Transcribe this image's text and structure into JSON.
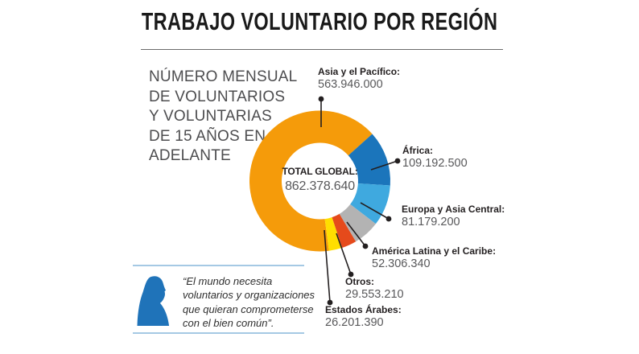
{
  "page": {
    "title": "TRABAJO VOLUNTARIO POR REGIÓN"
  },
  "subtitle": {
    "lines": [
      "NÚMERO MENSUAL",
      "DE VOLUNTARIOS",
      "Y VOLUNTARIAS",
      "DE 15 AÑOS EN",
      "ADELANTE"
    ]
  },
  "chart_data": {
    "type": "pie",
    "variant": "donut",
    "title": "TRABAJO VOLUNTARIO POR REGIÓN",
    "center": {
      "label": "TOTAL GLOBAL:",
      "value": "862.378.640",
      "total": 862378640
    },
    "segments": [
      {
        "label": "Asia y el Pacífico:",
        "value": 563946000,
        "display": "563.946.000",
        "color": "#F59B0A"
      },
      {
        "label": "África:",
        "value": 109192500,
        "display": "109.192.500",
        "color": "#1B75BB"
      },
      {
        "label": "Europa y Asia Central:",
        "value": 81179200,
        "display": "81.179.200",
        "color": "#3FA9DF"
      },
      {
        "label": "América Latina y el Caribe:",
        "value": 52306340,
        "display": "52.306.340",
        "color": "#B3B3B3"
      },
      {
        "label": "Otros:",
        "value": 29553210,
        "display": "29.553.210",
        "color": "#E54A1B"
      },
      {
        "label": "Estados Árabes:",
        "value": 26201390,
        "display": "26.201.390",
        "color": "#FFDE00"
      }
    ],
    "legend_position": "callout-labels-with-leader-lines",
    "order": "clockwise"
  },
  "quote": {
    "text": "“El mundo necesita voluntarios y organizaciones que quieran comprometerse con el bien común”."
  },
  "colors": {
    "silhouette_blue": "#1F73B9",
    "quote_rule_blue": "#A5C9E4",
    "leader_line": "#231F20",
    "title_text": "#1A1A1A",
    "subtitle_gray": "#4D4D4F",
    "number_gray": "#58585A"
  }
}
